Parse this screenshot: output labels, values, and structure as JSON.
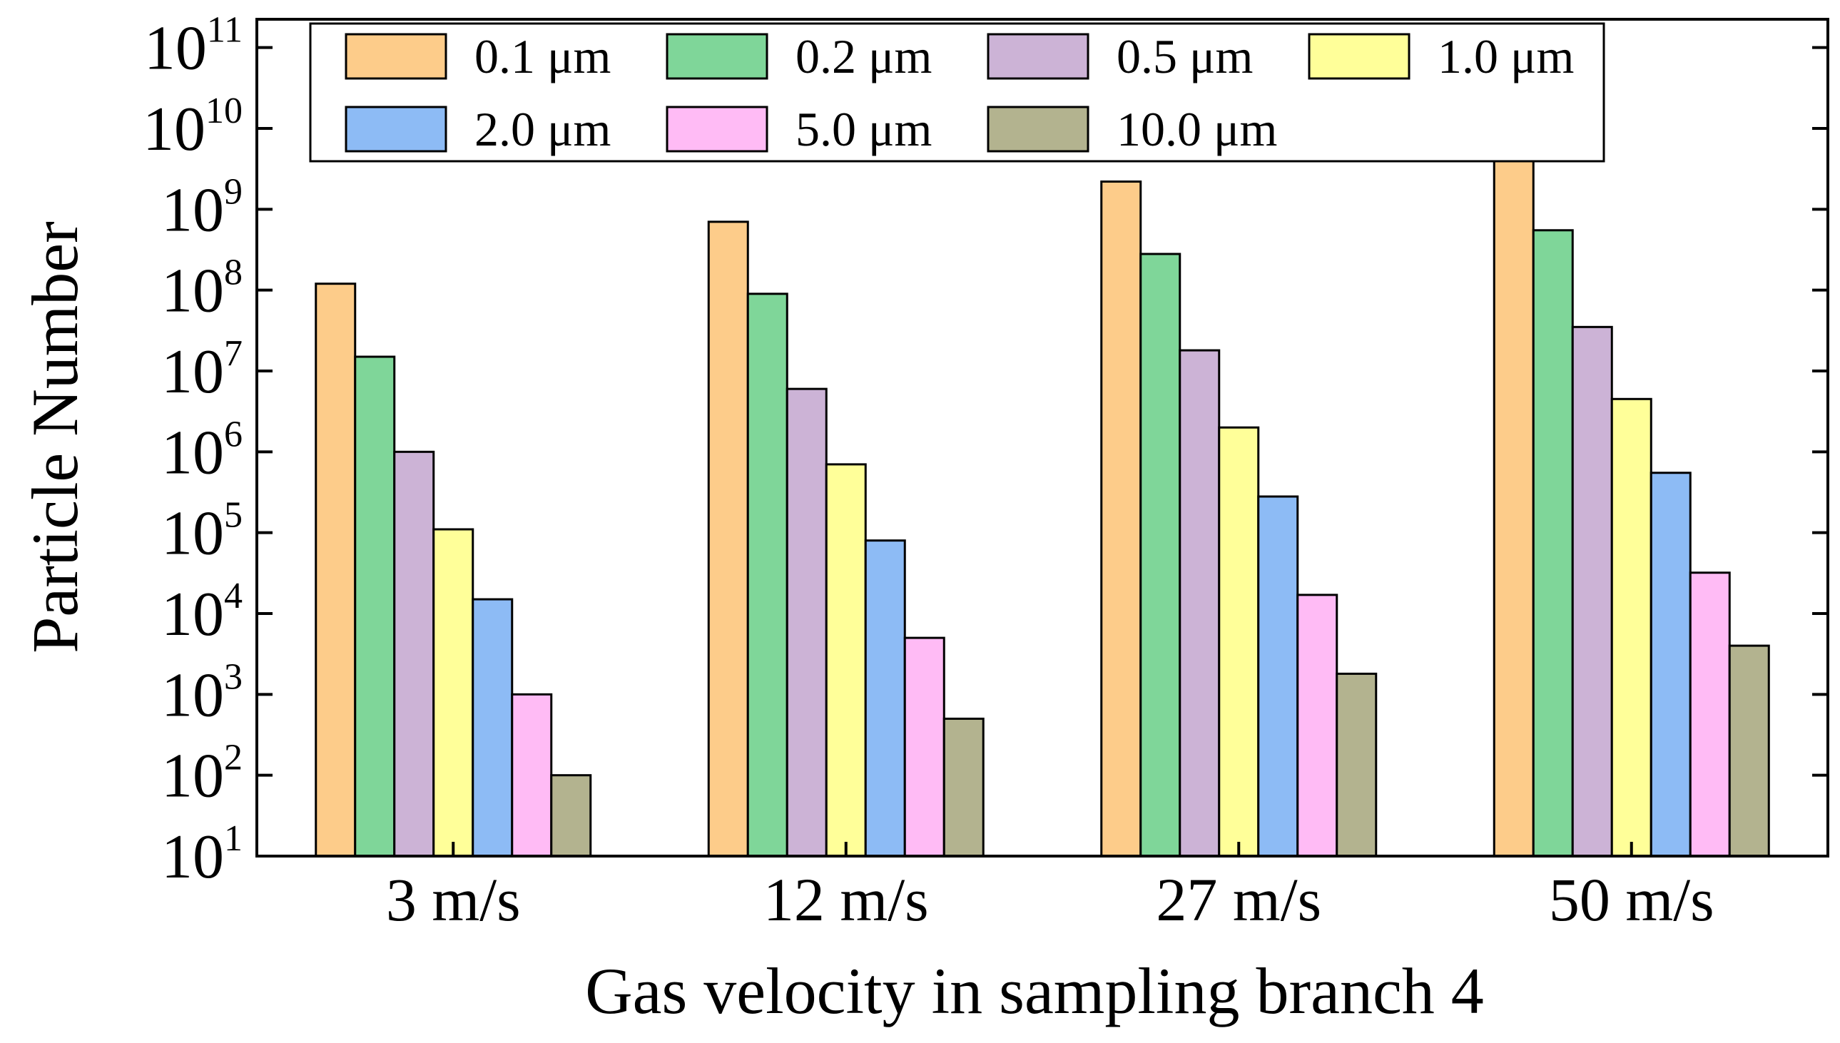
{
  "chart_data": {
    "type": "bar",
    "scale": "log",
    "xlabel": "Gas velocity in sampling branch 4",
    "ylabel": "Particle Number",
    "categories": [
      "3 m/s",
      "12 m/s",
      "27 m/s",
      "50 m/s"
    ],
    "ylim": [
      10,
      100000000000
    ],
    "y_ticks": [
      {
        "base": "10",
        "exp": "1"
      },
      {
        "base": "10",
        "exp": "2"
      },
      {
        "base": "10",
        "exp": "3"
      },
      {
        "base": "10",
        "exp": "4"
      },
      {
        "base": "10",
        "exp": "5"
      },
      {
        "base": "10",
        "exp": "6"
      },
      {
        "base": "10",
        "exp": "7"
      },
      {
        "base": "10",
        "exp": "8"
      },
      {
        "base": "10",
        "exp": "9"
      },
      {
        "base": "10",
        "exp": "10"
      },
      {
        "base": "10",
        "exp": "11"
      }
    ],
    "legend_position": "top",
    "series": [
      {
        "name": "0.1 μm",
        "color": "#FDCC8A",
        "values": [
          120000000,
          700000000,
          2200000000,
          4500000000
        ]
      },
      {
        "name": "0.2 μm",
        "color": "#7FD699",
        "values": [
          15000000,
          90000000,
          280000000,
          550000000
        ]
      },
      {
        "name": "0.5 μm",
        "color": "#CCB3D6",
        "values": [
          1000000,
          6000000,
          18000000,
          35000000
        ]
      },
      {
        "name": "1.0 μm",
        "color": "#FFFF99",
        "values": [
          110000,
          700000,
          2000000,
          4500000
        ]
      },
      {
        "name": "2.0 μm",
        "color": "#8DBBF5",
        "values": [
          15000,
          80000,
          280000,
          550000
        ]
      },
      {
        "name": "5.0 μm",
        "color": "#FFBBF5",
        "values": [
          1000,
          5000,
          17000,
          32000
        ]
      },
      {
        "name": "10.0 μm",
        "color": "#B3B38F",
        "values": [
          100,
          500,
          1800,
          4000
        ]
      }
    ]
  }
}
